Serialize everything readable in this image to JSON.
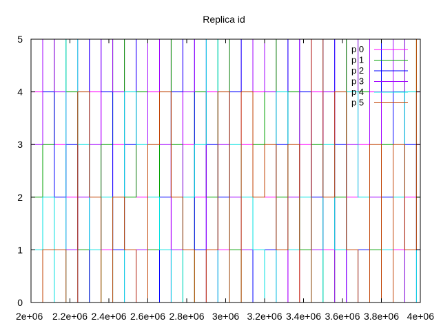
{
  "chart_data": {
    "type": "line",
    "title": "Replica id",
    "xlabel": "",
    "ylabel": "",
    "xlim": [
      2000000,
      4000000
    ],
    "ylim": [
      0,
      5
    ],
    "x_ticks": [
      2000000,
      2200000,
      2400000,
      2600000,
      2800000,
      3000000,
      3200000,
      3400000,
      3600000,
      3800000,
      4000000
    ],
    "x_tick_labels": [
      "2e+06",
      "2.2e+06",
      "2.4e+06",
      "2.6e+06",
      "2.8e+06",
      "3e+06",
      "3.2e+06",
      "3.4e+06",
      "3.6e+06",
      "3.8e+06",
      "4e+06"
    ],
    "y_ticks": [
      0,
      1,
      2,
      3,
      4,
      5
    ],
    "y_tick_labels": [
      "0",
      "1",
      "2",
      "3",
      "4",
      "5"
    ],
    "grid": false,
    "legend_position": "top-right",
    "series": [
      {
        "name": "p 0",
        "color": "#ff00ff",
        "x": [
          2000000,
          2060000,
          2120000,
          2180000,
          2240000,
          2300000,
          2360000,
          2420000,
          2480000,
          2540000,
          2600000,
          2660000,
          2720000,
          2780000,
          2840000,
          2900000,
          2960000,
          3020000,
          3080000,
          3140000,
          3200000,
          3260000,
          3320000,
          3380000,
          3440000,
          3500000,
          3560000,
          3620000,
          3680000,
          3740000,
          3800000,
          3860000,
          3920000,
          3980000
        ],
        "y": [
          4,
          5,
          3,
          2,
          5,
          4,
          1,
          3,
          5,
          2,
          4,
          0,
          5,
          3,
          2,
          4,
          1,
          5,
          3,
          4,
          2,
          5,
          0,
          3,
          4,
          1,
          5,
          2,
          3,
          4,
          5,
          1,
          2,
          3
        ]
      },
      {
        "name": "p 1",
        "color": "#00a000",
        "x": [
          2000000,
          2060000,
          2120000,
          2180000,
          2240000,
          2300000,
          2360000,
          2420000,
          2480000,
          2540000,
          2600000,
          2660000,
          2720000,
          2780000,
          2840000,
          2900000,
          2960000,
          3020000,
          3080000,
          3140000,
          3200000,
          3260000,
          3320000,
          3380000,
          3440000,
          3500000,
          3560000,
          3620000,
          3680000,
          3740000,
          3800000,
          3860000,
          3920000,
          3980000
        ],
        "y": [
          2,
          3,
          5,
          4,
          1,
          0,
          3,
          5,
          2,
          4,
          1,
          5,
          3,
          0,
          4,
          2,
          5,
          1,
          0,
          3,
          5,
          2,
          4,
          1,
          3,
          0,
          2,
          5,
          4,
          1,
          3,
          0,
          5,
          2
        ]
      },
      {
        "name": "p 2",
        "color": "#0000ff",
        "x": [
          2000000,
          2060000,
          2120000,
          2180000,
          2240000,
          2300000,
          2360000,
          2420000,
          2480000,
          2540000,
          2600000,
          2660000,
          2720000,
          2780000,
          2840000,
          2900000,
          2960000,
          3020000,
          3080000,
          3140000,
          3200000,
          3260000,
          3320000,
          3380000,
          3440000,
          3500000,
          3560000,
          3620000,
          3680000,
          3740000,
          3800000,
          3860000,
          3920000,
          3980000
        ],
        "y": [
          5,
          4,
          2,
          3,
          0,
          5,
          4,
          1,
          3,
          5,
          0,
          2,
          4,
          5,
          1,
          3,
          2,
          4,
          5,
          0,
          1,
          3,
          5,
          4,
          2,
          5,
          3,
          0,
          1,
          5,
          2,
          4,
          3,
          1
        ]
      },
      {
        "name": "p 3",
        "color": "#a000ff",
        "x": [
          2000000,
          2060000,
          2120000,
          2180000,
          2240000,
          2300000,
          2360000,
          2420000,
          2480000,
          2540000,
          2600000,
          2660000,
          2720000,
          2780000,
          2840000,
          2900000,
          2960000,
          3020000,
          3080000,
          3140000,
          3200000,
          3260000,
          3320000,
          3380000,
          3440000,
          3500000,
          3560000,
          3620000,
          3680000,
          3740000,
          3800000,
          3860000,
          3920000,
          3980000
        ],
        "y": [
          3,
          5,
          4,
          1,
          2,
          3,
          5,
          4,
          0,
          1,
          5,
          3,
          1,
          4,
          5,
          0,
          3,
          2,
          1,
          5,
          4,
          0,
          2,
          5,
          1,
          4,
          0,
          3,
          5,
          2,
          4,
          5,
          0,
          4
        ]
      },
      {
        "name": "p 4",
        "color": "#00e0e0",
        "x": [
          2000000,
          2060000,
          2120000,
          2180000,
          2240000,
          2300000,
          2360000,
          2420000,
          2480000,
          2540000,
          2600000,
          2660000,
          2720000,
          2780000,
          2840000,
          2900000,
          2960000,
          3020000,
          3080000,
          3140000,
          3200000,
          3260000,
          3320000,
          3380000,
          3440000,
          3500000,
          3560000,
          3620000,
          3680000,
          3740000,
          3800000,
          3860000,
          3920000,
          3980000
        ],
        "y": [
          1,
          2,
          0,
          5,
          3,
          1,
          2,
          0,
          4,
          3,
          2,
          1,
          0,
          2,
          3,
          5,
          0,
          3,
          2,
          1,
          0,
          4,
          1,
          2,
          0,
          3,
          1,
          4,
          2,
          0,
          1,
          2,
          4,
          0
        ]
      },
      {
        "name": "p 5",
        "color": "#c04000",
        "x": [
          2000000,
          2060000,
          2120000,
          2180000,
          2240000,
          2300000,
          2360000,
          2420000,
          2480000,
          2540000,
          2600000,
          2660000,
          2720000,
          2780000,
          2840000,
          2900000,
          2960000,
          3020000,
          3080000,
          3140000,
          3200000,
          3260000,
          3320000,
          3380000,
          3440000,
          3500000,
          3560000,
          3620000,
          3680000,
          3740000,
          3800000,
          3860000,
          3920000,
          3980000
        ],
        "y": [
          0,
          1,
          1,
          0,
          4,
          2,
          0,
          2,
          1,
          0,
          3,
          4,
          2,
          1,
          0,
          1,
          4,
          0,
          4,
          2,
          3,
          1,
          3,
          0,
          5,
          2,
          4,
          1,
          0,
          3,
          0,
          3,
          1,
          5
        ]
      }
    ]
  }
}
